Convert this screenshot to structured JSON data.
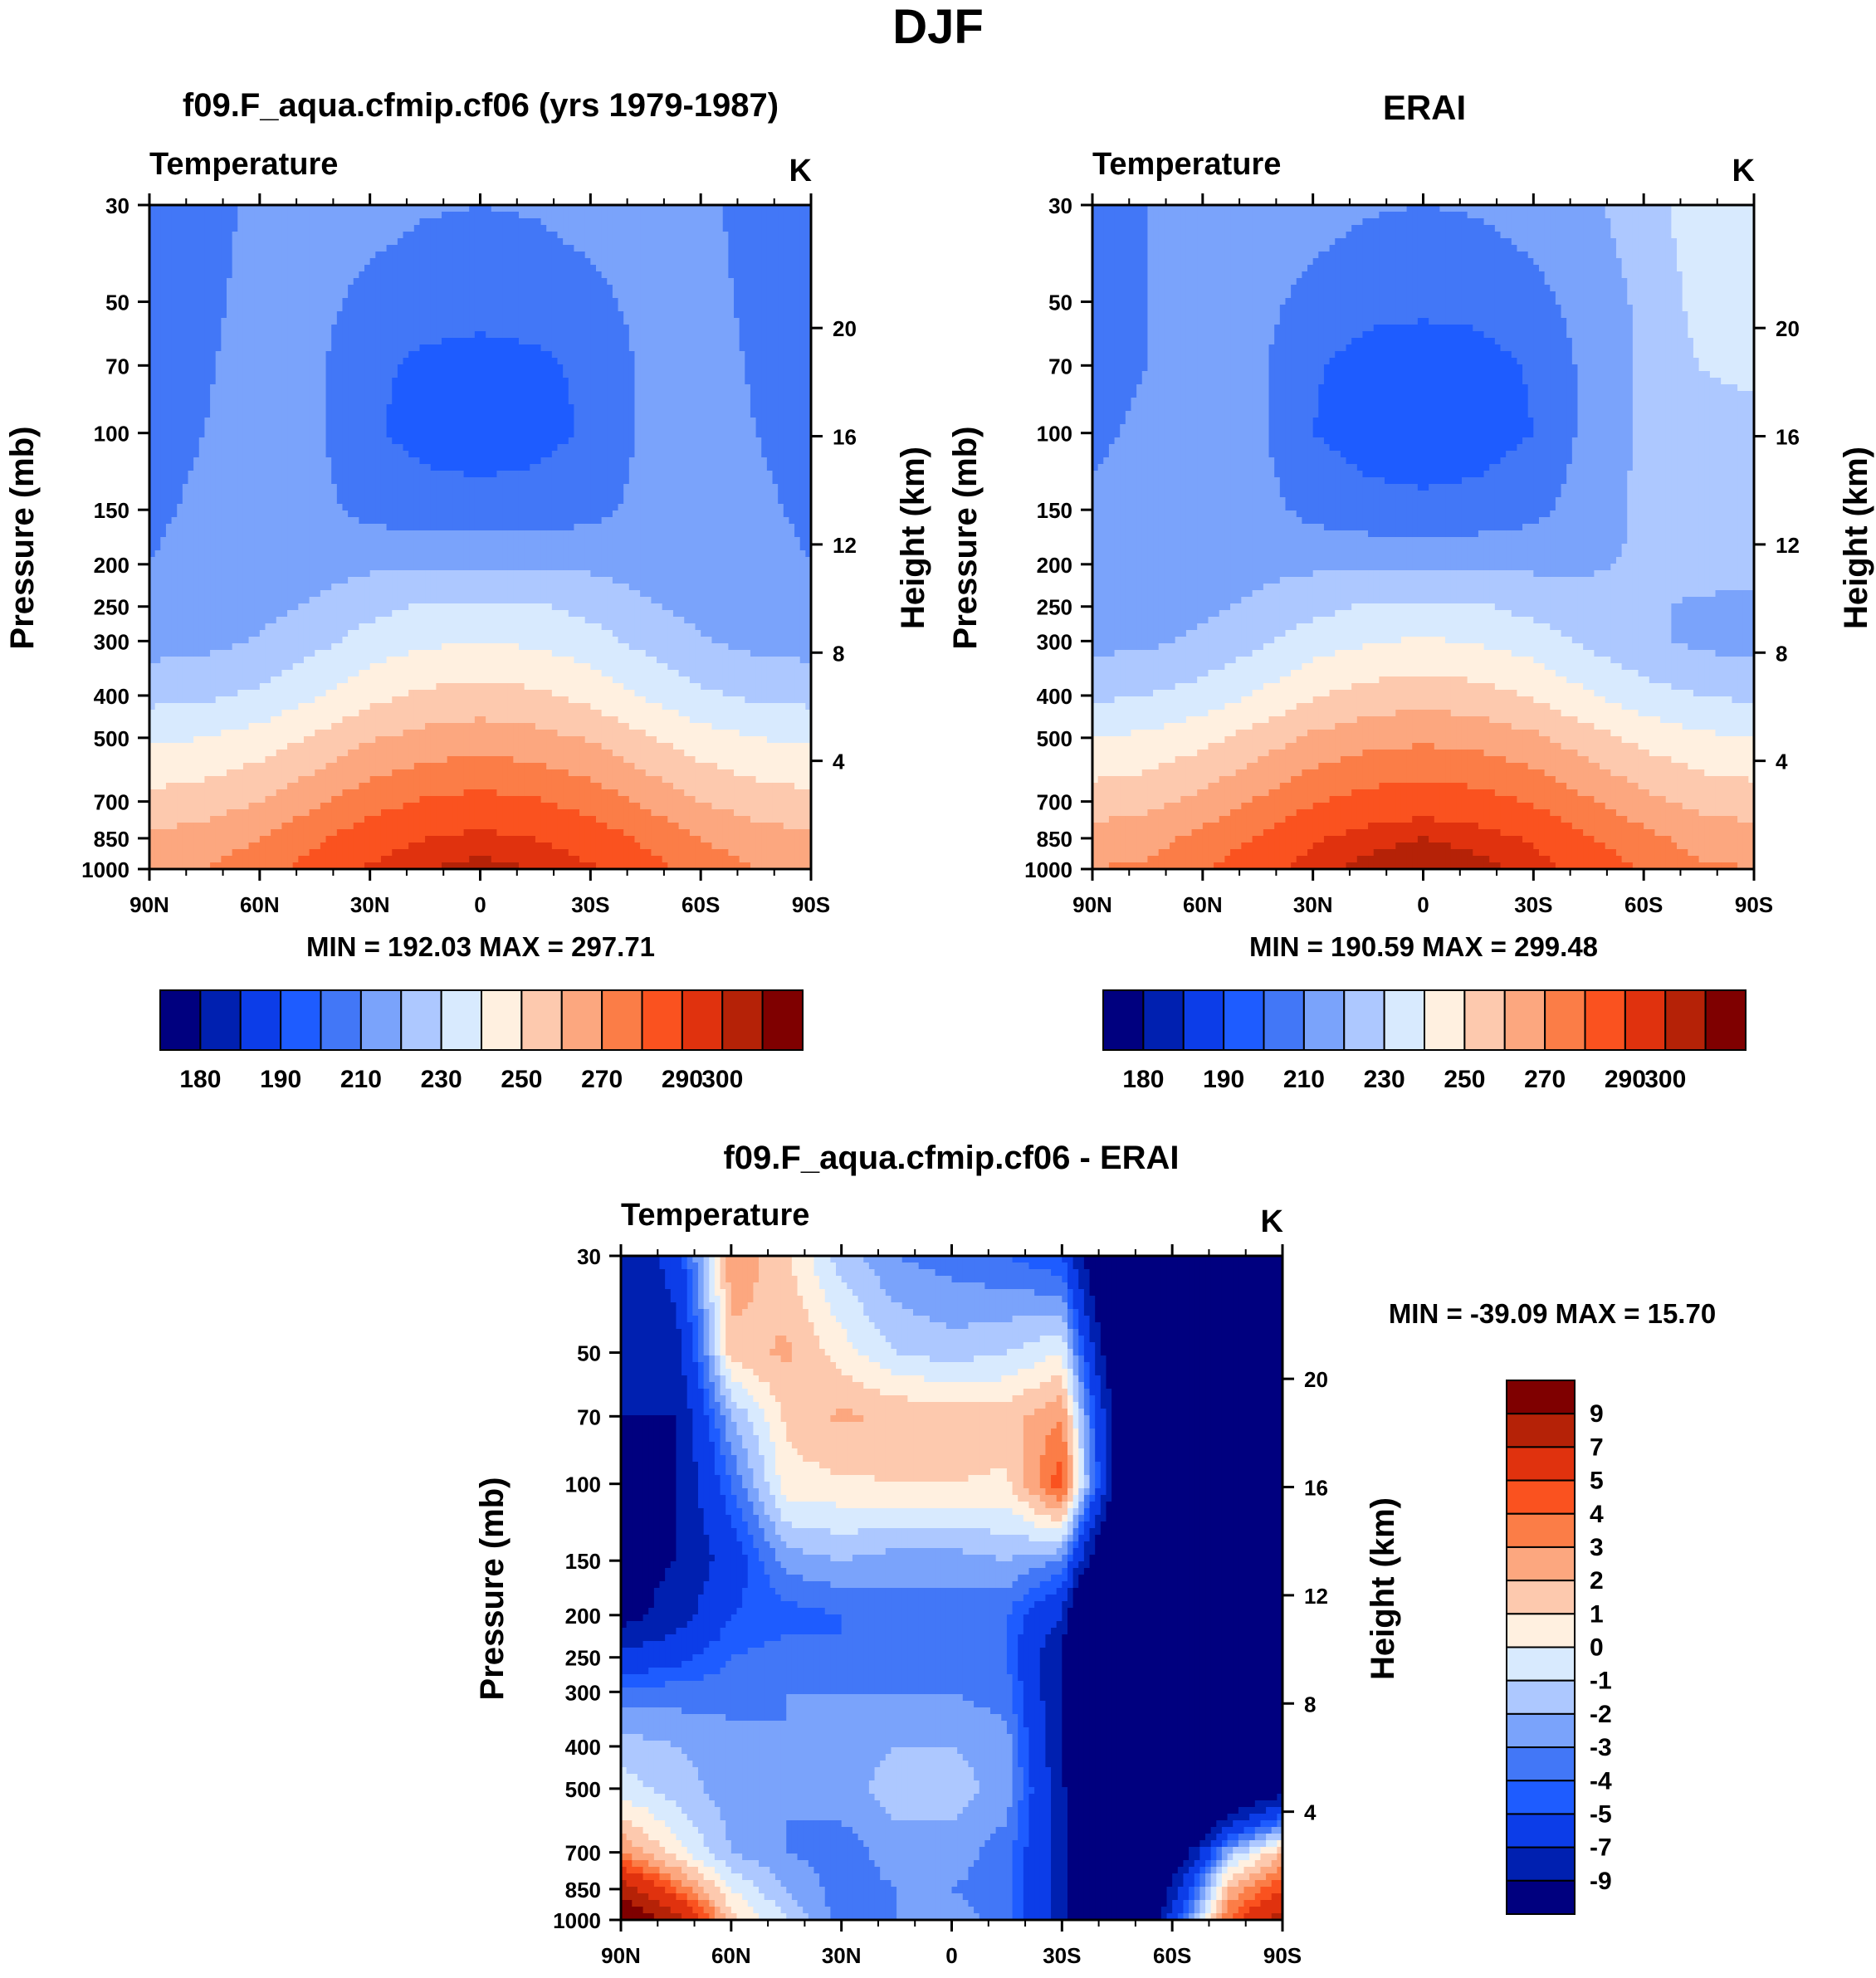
{
  "page_title": "DJF",
  "colorbars": {
    "abs": {
      "colors": [
        "#00007f",
        "#0020b0",
        "#0c3de8",
        "#1e5cff",
        "#4277f7",
        "#7aa3fb",
        "#adc8ff",
        "#d8eafe",
        "#fff0e0",
        "#fdc9ae",
        "#fca77f",
        "#fb7d47",
        "#fa521f",
        "#e0320e",
        "#b52207",
        "#7f0000"
      ],
      "labels": [
        "180",
        "190",
        "210",
        "230",
        "250",
        "270",
        "290",
        "300"
      ]
    },
    "diff": {
      "colors": [
        "#7f0000",
        "#b52207",
        "#e0320e",
        "#fa521f",
        "#fb7d47",
        "#fca77f",
        "#fdc9ae",
        "#fff0e0",
        "#d8eafe",
        "#adc8ff",
        "#7aa3fb",
        "#4277f7",
        "#1e5cff",
        "#0c3de8",
        "#0020b0",
        "#00007f"
      ],
      "labels": [
        "9",
        "7",
        "5",
        "4",
        "3",
        "2",
        "1",
        "0",
        "-1",
        "-2",
        "-3",
        "-4",
        "-5",
        "-7",
        "-9"
      ]
    }
  },
  "panels": {
    "model": {
      "title": "f09.F_aqua.cfmip.cf06 (yrs 1979-1987)",
      "left_label": "Temperature",
      "units": "K",
      "ylabel": "Pressure (mb)",
      "ylabel2": "Height (km)",
      "stats": "MIN = 192.03  MAX = 297.71"
    },
    "obs": {
      "title": "ERAI",
      "left_label": "Temperature",
      "units": "K",
      "ylabel": "Pressure (mb)",
      "ylabel2": "Height (km)",
      "stats": "MIN = 190.59  MAX = 299.48"
    },
    "diff": {
      "title": "f09.F_aqua.cfmip.cf06 - ERAI",
      "left_label": "Temperature",
      "units": "K",
      "ylabel": "Pressure (mb)",
      "ylabel2": "Height (km)",
      "stats": "MIN = -39.09  MAX =  15.70"
    }
  },
  "chart_data": [
    {
      "type": "heatmap",
      "title": "f09.F_aqua.cfmip.cf06 (yrs 1979-1987)",
      "variable": "Temperature",
      "units": "K",
      "xlabel": "",
      "ylabel": "Pressure (mb)",
      "ylabel_right": "Height (km)",
      "x_ticks": [
        "90N",
        "60N",
        "30N",
        "0",
        "30S",
        "60S",
        "90S"
      ],
      "x_values": [
        -90,
        -60,
        -30,
        0,
        30,
        60,
        90
      ],
      "xlim": [
        -90,
        90
      ],
      "y_ticks": [
        30,
        50,
        70,
        100,
        150,
        200,
        250,
        300,
        400,
        500,
        700,
        850,
        1000
      ],
      "ylim": [
        1000,
        30
      ],
      "y2_ticks": [
        4,
        8,
        12,
        16,
        20
      ],
      "min": 192.03,
      "max": 297.71,
      "levels": [
        180,
        185,
        190,
        200,
        210,
        220,
        230,
        240,
        250,
        260,
        270,
        280,
        290,
        295,
        300
      ],
      "field_points": {
        "x": [
          -90,
          -75,
          -60,
          -45,
          -30,
          -15,
          0,
          15,
          30,
          45,
          60,
          75,
          90
        ],
        "p": [
          30,
          50,
          70,
          100,
          150,
          200,
          250,
          300,
          400,
          500,
          700,
          850,
          1000
        ],
        "values": [
          [
            205,
            207,
            212,
            214,
            214,
            211,
            210,
            211,
            214,
            214,
            212,
            207,
            205
          ],
          [
            206,
            208,
            213,
            213,
            207,
            204,
            203,
            204,
            207,
            213,
            213,
            208,
            206
          ],
          [
            207,
            209,
            214,
            212,
            202,
            198,
            197,
            198,
            202,
            212,
            214,
            209,
            207
          ],
          [
            208,
            210,
            215,
            212,
            201,
            197,
            196,
            197,
            201,
            212,
            215,
            210,
            208
          ],
          [
            209,
            211,
            214,
            213,
            207,
            204,
            203,
            204,
            207,
            213,
            214,
            211,
            209
          ],
          [
            210,
            212,
            214,
            216,
            218,
            219,
            219,
            219,
            218,
            216,
            214,
            212,
            210
          ],
          [
            212,
            214,
            217,
            221,
            227,
            231,
            232,
            231,
            227,
            221,
            217,
            214,
            212
          ],
          [
            216,
            217,
            221,
            227,
            234,
            238,
            240,
            238,
            234,
            227,
            221,
            217,
            216
          ],
          [
            227,
            228,
            232,
            239,
            247,
            252,
            254,
            252,
            247,
            239,
            232,
            228,
            227
          ],
          [
            238,
            240,
            244,
            251,
            259,
            263,
            265,
            263,
            259,
            251,
            244,
            240,
            238
          ],
          [
            253,
            255,
            260,
            268,
            276,
            281,
            283,
            281,
            276,
            268,
            260,
            255,
            253
          ],
          [
            262,
            264,
            270,
            278,
            286,
            290,
            292,
            290,
            286,
            278,
            270,
            264,
            262
          ],
          [
            268,
            270,
            276,
            284,
            291,
            295,
            297,
            295,
            291,
            284,
            276,
            270,
            268
          ]
        ]
      }
    },
    {
      "type": "heatmap",
      "title": "ERAI",
      "variable": "Temperature",
      "units": "K",
      "xlabel": "",
      "ylabel": "Pressure (mb)",
      "ylabel_right": "Height (km)",
      "x_ticks": [
        "90N",
        "60N",
        "30N",
        "0",
        "30S",
        "60S",
        "90S"
      ],
      "x_values": [
        -90,
        -60,
        -30,
        0,
        30,
        60,
        90
      ],
      "xlim": [
        -90,
        90
      ],
      "y_ticks": [
        30,
        50,
        70,
        100,
        150,
        200,
        250,
        300,
        400,
        500,
        700,
        850,
        1000
      ],
      "ylim": [
        1000,
        30
      ],
      "y2_ticks": [
        4,
        8,
        12,
        16,
        20
      ],
      "min": 190.59,
      "max": 299.48,
      "levels": [
        180,
        185,
        190,
        200,
        210,
        220,
        230,
        240,
        250,
        260,
        270,
        280,
        290,
        295,
        300
      ],
      "field_points": {
        "x": [
          -90,
          -75,
          -60,
          -45,
          -30,
          -15,
          0,
          15,
          30,
          45,
          60,
          75,
          90
        ],
        "p": [
          30,
          50,
          70,
          100,
          150,
          200,
          250,
          300,
          400,
          500,
          700,
          850,
          1000
        ],
        "values": [
          [
            208,
            210,
            213,
            214,
            214,
            211,
            210,
            211,
            214,
            218,
            225,
            236,
            238
          ],
          [
            208,
            210,
            214,
            213,
            207,
            203,
            202,
            203,
            207,
            214,
            222,
            233,
            236
          ],
          [
            208,
            210,
            215,
            212,
            201,
            196,
            195,
            196,
            201,
            213,
            222,
            230,
            233
          ],
          [
            209,
            211,
            215,
            212,
            200,
            196,
            195,
            196,
            200,
            213,
            222,
            226,
            226
          ],
          [
            211,
            212,
            215,
            214,
            207,
            203,
            202,
            203,
            207,
            215,
            222,
            225,
            224
          ],
          [
            212,
            213,
            215,
            217,
            218,
            219,
            219,
            219,
            218,
            219,
            221,
            223,
            223
          ],
          [
            213,
            215,
            218,
            222,
            227,
            231,
            232,
            231,
            227,
            223,
            221,
            219,
            218
          ],
          [
            217,
            218,
            222,
            228,
            235,
            239,
            241,
            239,
            235,
            228,
            222,
            218,
            216
          ],
          [
            228,
            230,
            234,
            241,
            249,
            254,
            256,
            254,
            249,
            241,
            234,
            230,
            228
          ],
          [
            240,
            242,
            247,
            254,
            262,
            266,
            268,
            266,
            262,
            254,
            247,
            242,
            240
          ],
          [
            255,
            257,
            263,
            271,
            279,
            284,
            286,
            284,
            279,
            271,
            263,
            257,
            255
          ],
          [
            264,
            266,
            273,
            281,
            289,
            293,
            295,
            293,
            289,
            281,
            273,
            266,
            264
          ],
          [
            270,
            272,
            279,
            287,
            293,
            297,
            299,
            297,
            293,
            287,
            279,
            272,
            270
          ]
        ]
      }
    },
    {
      "type": "heatmap",
      "title": "f09.F_aqua.cfmip.cf06 - ERAI",
      "variable": "Temperature",
      "units": "K",
      "xlabel": "",
      "ylabel": "Pressure (mb)",
      "ylabel_right": "Height (km)",
      "x_ticks": [
        "90N",
        "60N",
        "30N",
        "0",
        "30S",
        "60S",
        "90S"
      ],
      "x_values": [
        -90,
        -60,
        -30,
        0,
        30,
        60,
        90
      ],
      "xlim": [
        -90,
        90
      ],
      "y_ticks": [
        30,
        50,
        70,
        100,
        150,
        200,
        250,
        300,
        400,
        500,
        700,
        850,
        1000
      ],
      "ylim": [
        1000,
        30
      ],
      "y2_ticks": [
        4,
        8,
        12,
        16,
        20
      ],
      "min": -39.09,
      "max": 15.7,
      "levels": [
        -9,
        -7,
        -5,
        -4,
        -3,
        -2,
        -1,
        0,
        1,
        2,
        3,
        4,
        5,
        7,
        9
      ],
      "field_points": {
        "x": [
          -90,
          -75,
          -60,
          -45,
          -30,
          -15,
          0,
          15,
          30,
          45,
          60,
          75,
          90
        ],
        "p": [
          30,
          50,
          70,
          100,
          150,
          200,
          250,
          300,
          400,
          500,
          700,
          850,
          1000
        ],
        "values": [
          [
            -9,
            -6,
            2.8,
            1.2,
            -1.5,
            -3,
            -3.5,
            -4,
            -5,
            -15,
            -25,
            -30,
            -30
          ],
          [
            -9,
            -8,
            1.5,
            2.2,
            0.5,
            -1,
            -1.5,
            -1,
            0,
            -12,
            -24,
            -30,
            -30
          ],
          [
            -9,
            -9,
            -2,
            1.2,
            2.2,
            1.8,
            1.8,
            1.5,
            3,
            -10,
            -22,
            -30,
            -30
          ],
          [
            -10,
            -9,
            -4,
            0.6,
            0.8,
            1,
            1,
            0.8,
            4.8,
            -10,
            -24,
            -30,
            -30
          ],
          [
            -10,
            -9,
            -6,
            -2.5,
            -2,
            -2.5,
            -2.5,
            -2,
            -3,
            -15,
            -28,
            -30,
            -30
          ],
          [
            -10,
            -8,
            -5,
            -4.5,
            -4,
            -3.5,
            -3.5,
            -4,
            -7,
            -25,
            -30,
            -30,
            -30
          ],
          [
            -6.5,
            -5.5,
            -4,
            -3.5,
            -4,
            -3.5,
            -3.5,
            -4,
            -9,
            -30,
            -30,
            -30,
            -30
          ],
          [
            -3.5,
            -3.5,
            -3.5,
            -3,
            -3,
            -3,
            -3,
            -3.5,
            -9,
            -30,
            -28,
            -24,
            -20
          ],
          [
            -1.5,
            -2,
            -2.5,
            -3,
            -2.5,
            -2,
            -2,
            -2.5,
            -9,
            -30,
            -26,
            -23,
            -20
          ],
          [
            -0.5,
            -1.5,
            -2.5,
            -3,
            -2.5,
            -1.5,
            -1.5,
            -2.5,
            -8,
            -28,
            -22,
            -14,
            -10
          ],
          [
            3,
            0.5,
            -2,
            -3,
            -3.5,
            -2.5,
            -2.5,
            -3.5,
            -8,
            -25,
            -12,
            -2,
            2
          ],
          [
            8,
            4,
            0,
            -2,
            -3.5,
            -3,
            -3,
            -3.5,
            -8,
            -22,
            -8,
            2,
            5
          ],
          [
            12,
            8,
            1.5,
            -1,
            -3.5,
            -3,
            -2.5,
            -3.5,
            -8,
            -20,
            -6,
            4,
            8
          ]
        ]
      }
    }
  ]
}
